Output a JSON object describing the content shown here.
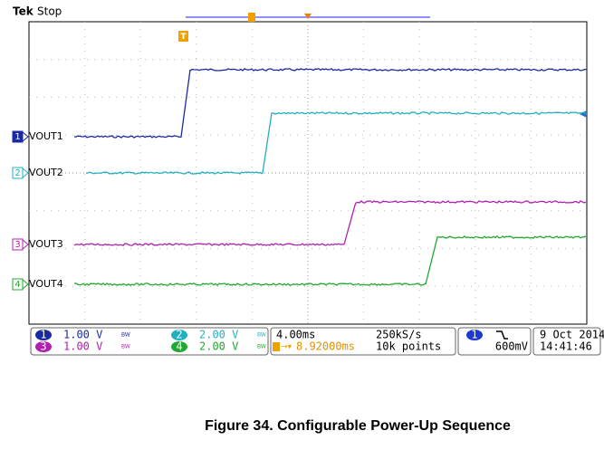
{
  "header": {
    "brand": "Tek",
    "status": "Stop"
  },
  "channels": [
    {
      "number": "1",
      "label": "VOUT1",
      "scale": "1.00 V"
    },
    {
      "number": "2",
      "label": "VOUT2",
      "scale": "2.00 V"
    },
    {
      "number": "3",
      "label": "VOUT3",
      "scale": "1.00 V"
    },
    {
      "number": "4",
      "label": "VOUT4",
      "scale": "2.00 V"
    }
  ],
  "bw_limit": "BW",
  "acquisition": {
    "timebase": "4.00ms",
    "sample_rate": "250kS/s",
    "trigger_position": "8.92000ms",
    "record_length": "10k points"
  },
  "trigger": {
    "channel": "1",
    "level": "600mV"
  },
  "timestamp": {
    "date": "9 Oct 2014",
    "time": "14:41:46"
  },
  "caption": "Figure 34. Configurable Power-Up Sequence"
}
